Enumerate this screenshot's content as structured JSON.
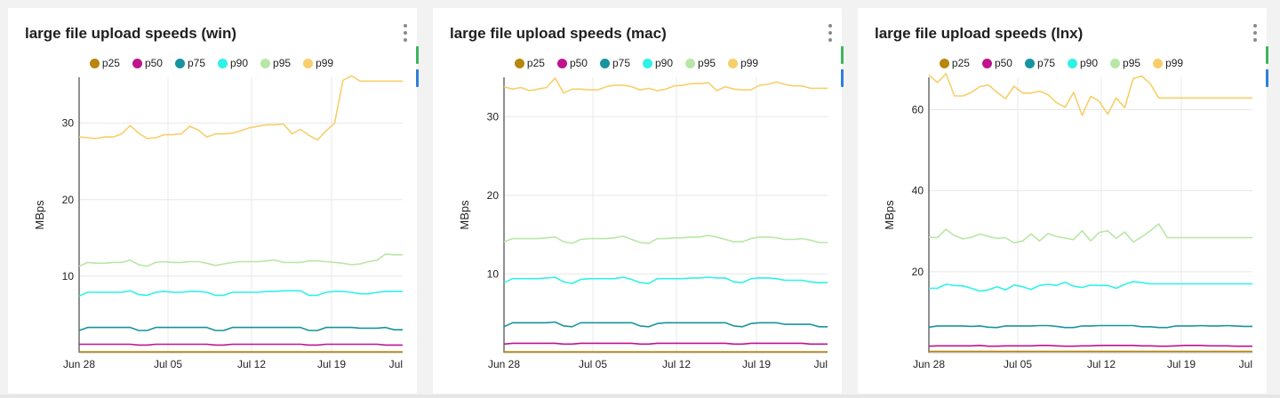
{
  "colors": {
    "p25": "#b8860b",
    "p50": "#c0148c",
    "p75": "#17949e",
    "p90": "#2ff2e6",
    "p95": "#b9e6a6",
    "p99": "#f7cf6a"
  },
  "series_names": [
    "p25",
    "p50",
    "p75",
    "p90",
    "p95",
    "p99"
  ],
  "chart_data": [
    {
      "type": "line",
      "title": "large file upload speeds (win)",
      "xlabel": "",
      "ylabel": "MBps",
      "x_start": "Jun 28",
      "x_ticks": [
        "Jun 28",
        "Jul 05",
        "Jul 12",
        "Jul 19",
        "Jul"
      ],
      "y_ticks": [
        10,
        20,
        30
      ],
      "ylim": [
        0,
        36
      ],
      "grid": true,
      "legend": "top",
      "series": [
        {
          "name": "p25",
          "values": [
            0.1,
            0.1,
            0.1,
            0.1,
            0.1,
            0.1,
            0.1,
            0.1,
            0.1,
            0.1,
            0.1,
            0.1,
            0.1,
            0.1,
            0.1,
            0.1,
            0.1,
            0.1,
            0.1,
            0.1,
            0.1,
            0.1,
            0.1,
            0.1,
            0.1,
            0.1,
            0.1,
            0.1,
            0.1,
            0.1,
            0.1,
            0.1,
            0.1,
            0.1,
            0.1,
            0.1,
            0.1,
            0.1,
            0.1
          ]
        },
        {
          "name": "p50",
          "values": [
            1.1,
            1.1,
            1.1,
            1.1,
            1.1,
            1.1,
            1.1,
            1.0,
            1.0,
            1.1,
            1.1,
            1.1,
            1.1,
            1.1,
            1.1,
            1.1,
            1.0,
            1.0,
            1.1,
            1.1,
            1.1,
            1.1,
            1.1,
            1.1,
            1.1,
            1.1,
            1.1,
            1.0,
            1.0,
            1.1,
            1.1,
            1.1,
            1.1,
            1.1,
            1.1,
            1.1,
            1.0,
            1.0,
            1.0
          ]
        },
        {
          "name": "p75",
          "values": [
            2.9,
            3.3,
            3.3,
            3.3,
            3.3,
            3.3,
            3.3,
            2.9,
            2.9,
            3.3,
            3.3,
            3.3,
            3.3,
            3.3,
            3.3,
            3.3,
            2.9,
            2.9,
            3.3,
            3.3,
            3.3,
            3.3,
            3.3,
            3.3,
            3.3,
            3.3,
            3.3,
            2.9,
            2.9,
            3.3,
            3.3,
            3.3,
            3.3,
            3.2,
            3.2,
            3.2,
            3.3,
            3.0,
            3.0
          ]
        },
        {
          "name": "p90",
          "values": [
            7.4,
            7.9,
            7.9,
            7.9,
            7.9,
            7.9,
            8.1,
            7.6,
            7.5,
            7.9,
            8.0,
            7.9,
            7.9,
            8.0,
            8.0,
            7.9,
            7.5,
            7.5,
            7.9,
            7.9,
            7.9,
            7.9,
            8.0,
            8.0,
            8.1,
            8.1,
            8.1,
            7.5,
            7.5,
            7.9,
            8.0,
            8.0,
            7.9,
            7.7,
            7.7,
            7.9,
            8.0,
            8.0,
            8.0
          ]
        },
        {
          "name": "p95",
          "values": [
            11.3,
            11.8,
            11.7,
            11.7,
            11.8,
            11.8,
            12.1,
            11.5,
            11.3,
            11.8,
            11.9,
            11.8,
            11.8,
            11.9,
            11.9,
            11.7,
            11.4,
            11.6,
            11.8,
            11.9,
            11.9,
            11.9,
            12.0,
            12.1,
            11.8,
            11.8,
            11.8,
            12.0,
            12.0,
            11.9,
            11.8,
            11.7,
            11.5,
            11.6,
            11.9,
            12.1,
            12.9,
            12.8,
            12.8
          ]
        },
        {
          "name": "p99",
          "values": [
            28.2,
            28.1,
            28.0,
            28.2,
            28.2,
            28.6,
            29.7,
            28.7,
            28.0,
            28.1,
            28.5,
            28.5,
            28.6,
            29.6,
            29.1,
            28.2,
            28.6,
            28.6,
            28.7,
            29.0,
            29.4,
            29.6,
            29.8,
            29.8,
            29.9,
            28.6,
            29.2,
            28.4,
            27.8,
            29.0,
            30.0,
            35.6,
            36.2,
            35.5,
            35.5,
            35.5,
            35.5,
            35.5,
            35.5
          ]
        }
      ]
    },
    {
      "type": "line",
      "title": "large file upload speeds (mac)",
      "xlabel": "",
      "ylabel": "MBps",
      "x_start": "Jun 28",
      "x_ticks": [
        "Jun 28",
        "Jul 05",
        "Jul 12",
        "Jul 19",
        "Jul"
      ],
      "y_ticks": [
        10,
        20,
        30
      ],
      "ylim": [
        0,
        35
      ],
      "grid": true,
      "legend": "top",
      "series": [
        {
          "name": "p25",
          "values": [
            0.1,
            0.1,
            0.1,
            0.1,
            0.1,
            0.1,
            0.1,
            0.1,
            0.1,
            0.1,
            0.1,
            0.1,
            0.1,
            0.1,
            0.1,
            0.1,
            0.1,
            0.1,
            0.1,
            0.1,
            0.1,
            0.1,
            0.1,
            0.1,
            0.1,
            0.1,
            0.1,
            0.1,
            0.1,
            0.1,
            0.1,
            0.1,
            0.1,
            0.1,
            0.1,
            0.1,
            0.1,
            0.1,
            0.1
          ]
        },
        {
          "name": "p50",
          "values": [
            1.1,
            1.2,
            1.2,
            1.2,
            1.2,
            1.2,
            1.2,
            1.1,
            1.1,
            1.2,
            1.2,
            1.2,
            1.2,
            1.2,
            1.2,
            1.2,
            1.1,
            1.1,
            1.2,
            1.2,
            1.2,
            1.2,
            1.2,
            1.2,
            1.2,
            1.2,
            1.2,
            1.1,
            1.1,
            1.2,
            1.2,
            1.2,
            1.2,
            1.2,
            1.2,
            1.2,
            1.1,
            1.1,
            1.1
          ]
        },
        {
          "name": "p75",
          "values": [
            3.3,
            3.8,
            3.8,
            3.8,
            3.8,
            3.8,
            3.9,
            3.4,
            3.3,
            3.8,
            3.8,
            3.8,
            3.8,
            3.8,
            3.8,
            3.8,
            3.4,
            3.3,
            3.7,
            3.8,
            3.8,
            3.8,
            3.8,
            3.8,
            3.8,
            3.8,
            3.8,
            3.4,
            3.3,
            3.7,
            3.8,
            3.8,
            3.8,
            3.6,
            3.6,
            3.6,
            3.6,
            3.3,
            3.3
          ]
        },
        {
          "name": "p90",
          "values": [
            8.9,
            9.4,
            9.4,
            9.4,
            9.4,
            9.5,
            9.6,
            9.0,
            8.8,
            9.3,
            9.4,
            9.4,
            9.4,
            9.4,
            9.6,
            9.3,
            8.9,
            8.8,
            9.4,
            9.4,
            9.4,
            9.4,
            9.5,
            9.5,
            9.6,
            9.5,
            9.5,
            9.0,
            8.9,
            9.4,
            9.5,
            9.5,
            9.4,
            9.2,
            9.2,
            9.2,
            9.0,
            8.9,
            8.9
          ]
        },
        {
          "name": "p95",
          "values": [
            14.1,
            14.5,
            14.5,
            14.5,
            14.5,
            14.6,
            14.7,
            14.1,
            13.9,
            14.4,
            14.5,
            14.5,
            14.5,
            14.6,
            14.8,
            14.4,
            14.0,
            13.9,
            14.5,
            14.5,
            14.6,
            14.6,
            14.7,
            14.7,
            14.9,
            14.7,
            14.4,
            14.1,
            14.1,
            14.5,
            14.7,
            14.7,
            14.6,
            14.4,
            14.4,
            14.5,
            14.3,
            14.0,
            14.0
          ]
        },
        {
          "name": "p99",
          "values": [
            33.8,
            33.5,
            33.7,
            33.3,
            33.5,
            33.7,
            34.9,
            33.0,
            33.5,
            33.5,
            33.4,
            33.4,
            33.8,
            34.0,
            34.0,
            33.8,
            33.4,
            33.6,
            33.3,
            33.5,
            33.9,
            34.0,
            34.2,
            34.2,
            34.3,
            33.3,
            33.8,
            33.5,
            33.4,
            33.4,
            34.0,
            34.1,
            34.4,
            34.1,
            33.9,
            33.9,
            33.6,
            33.6,
            33.6
          ]
        }
      ]
    },
    {
      "type": "line",
      "title": "large file upload speeds (lnx)",
      "xlabel": "",
      "ylabel": "MBps",
      "x_start": "Jun 28",
      "x_ticks": [
        "Jun 28",
        "Jul 05",
        "Jul 12",
        "Jul 19",
        "Jul"
      ],
      "y_ticks": [
        20,
        40,
        60
      ],
      "ylim": [
        0,
        68
      ],
      "grid": true,
      "legend": "top",
      "series": [
        {
          "name": "p25",
          "values": [
            0.3,
            0.3,
            0.3,
            0.3,
            0.3,
            0.3,
            0.3,
            0.3,
            0.3,
            0.3,
            0.3,
            0.3,
            0.3,
            0.3,
            0.3,
            0.3,
            0.3,
            0.3,
            0.3,
            0.3,
            0.3,
            0.3,
            0.3,
            0.3,
            0.3,
            0.3,
            0.3,
            0.3,
            0.3,
            0.3,
            0.3,
            0.3,
            0.3,
            0.3,
            0.3,
            0.3,
            0.3,
            0.3,
            0.3
          ]
        },
        {
          "name": "p50",
          "values": [
            1.6,
            1.7,
            1.7,
            1.7,
            1.7,
            1.7,
            1.8,
            1.6,
            1.6,
            1.7,
            1.7,
            1.7,
            1.7,
            1.8,
            1.8,
            1.7,
            1.6,
            1.6,
            1.7,
            1.7,
            1.8,
            1.8,
            1.8,
            1.8,
            1.8,
            1.7,
            1.7,
            1.6,
            1.6,
            1.7,
            1.8,
            1.8,
            1.8,
            1.7,
            1.7,
            1.7,
            1.6,
            1.6,
            1.6
          ]
        },
        {
          "name": "p75",
          "values": [
            6.3,
            6.6,
            6.6,
            6.6,
            6.6,
            6.5,
            6.6,
            6.3,
            6.2,
            6.6,
            6.6,
            6.6,
            6.6,
            6.7,
            6.7,
            6.5,
            6.2,
            6.2,
            6.6,
            6.6,
            6.7,
            6.7,
            6.7,
            6.7,
            6.7,
            6.4,
            6.4,
            6.2,
            6.2,
            6.6,
            6.6,
            6.6,
            6.7,
            6.6,
            6.6,
            6.7,
            6.6,
            6.5,
            6.5
          ]
        },
        {
          "name": "p90",
          "values": [
            15.9,
            15.9,
            16.9,
            16.6,
            16.5,
            15.9,
            15.2,
            15.5,
            16.3,
            15.5,
            16.7,
            16.3,
            15.6,
            16.6,
            16.9,
            16.6,
            17.4,
            16.4,
            16.1,
            16.7,
            16.6,
            16.6,
            15.9,
            16.9,
            17.5,
            17.3,
            17.0,
            17.0,
            17.0,
            17.0,
            17.0,
            17.0,
            17.0,
            17.0,
            17.0,
            17.0,
            17.0,
            17.0,
            17.0
          ]
        },
        {
          "name": "p95",
          "values": [
            28.5,
            28.4,
            30.5,
            28.9,
            28.1,
            28.5,
            29.3,
            28.7,
            28.2,
            28.4,
            27.1,
            27.6,
            29.3,
            27.6,
            29.4,
            28.7,
            28.3,
            27.9,
            30.1,
            27.6,
            29.7,
            30.1,
            28.2,
            29.8,
            27.3,
            28.6,
            30.1,
            31.8,
            28.4,
            28.4,
            28.4,
            28.4,
            28.4,
            28.4,
            28.4,
            28.4,
            28.4,
            28.4,
            28.4
          ]
        },
        {
          "name": "p99",
          "values": [
            68.6,
            66.7,
            68.9,
            63.4,
            63.4,
            64.3,
            65.7,
            66.1,
            64.3,
            62.7,
            65.8,
            64.1,
            64.1,
            64.6,
            63.7,
            61.7,
            60.6,
            64.3,
            58.6,
            63.3,
            62.1,
            58.9,
            62.9,
            60.5,
            67.7,
            68.3,
            66.4,
            62.9,
            62.9,
            62.9,
            62.9,
            62.9,
            62.9,
            62.9,
            62.9,
            62.9,
            62.9,
            62.9,
            62.9
          ]
        }
      ]
    }
  ]
}
